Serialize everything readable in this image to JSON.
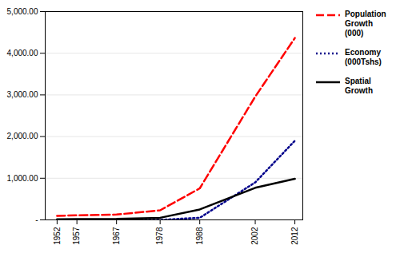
{
  "chart_data": {
    "type": "line",
    "x": [
      1952,
      1957,
      1967,
      1978,
      1988,
      2002,
      2012
    ],
    "series": [
      {
        "name": "Population\nGrowth\n(000)",
        "color": "#FF0000",
        "line_style": "dashed",
        "values": [
          98,
          109,
          128,
          230,
          757,
          2959,
          4365
        ]
      },
      {
        "name": "Economy\n(000Tshs)",
        "color": "#00008B",
        "line_style": "dotted",
        "values": [
          0,
          0,
          0,
          0,
          50,
          900,
          1900
        ]
      },
      {
        "name": "Spatial\nGrowth",
        "color": "#000000",
        "line_style": "solid",
        "values": [
          14,
          18,
          22,
          50,
          250,
          770,
          985
        ]
      }
    ],
    "xlim": [
      1949,
      2014
    ],
    "xticks": [
      1952,
      1957,
      1967,
      1978,
      1988,
      2002,
      2012
    ],
    "ylim": [
      0,
      5000
    ],
    "yticks": [
      {
        "value": 0,
        "label": "-"
      },
      {
        "value": 1000,
        "label": "1,000.00"
      },
      {
        "value": 2000,
        "label": "2,000.00"
      },
      {
        "value": 3000,
        "label": "3,000.00"
      },
      {
        "value": 4000,
        "label": "4,000.00"
      },
      {
        "value": 5000,
        "label": "5,000.00"
      }
    ],
    "grid": "y",
    "legend": "right"
  }
}
